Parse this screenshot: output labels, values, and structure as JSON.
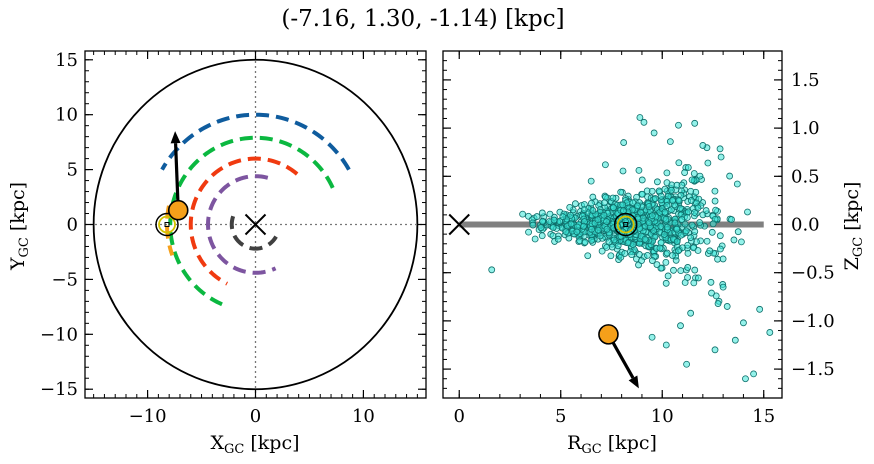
{
  "figure": {
    "title": "(-7.16, 1.30, -1.14) [kpc]"
  },
  "chart_data": [
    {
      "type": "line",
      "panel": "left",
      "xlabel_main": "X",
      "xlabel_sub": "GC",
      "xlabel_unit": " [kpc]",
      "ylabel_main": "Y",
      "ylabel_sub": "GC",
      "ylabel_unit": " [kpc]",
      "xlim": [
        -15.8,
        15.8
      ],
      "ylim": [
        -15.8,
        15.8
      ],
      "xticks": [
        -10,
        0,
        10
      ],
      "xtick_labels": [
        "−10",
        "0",
        "10"
      ],
      "yticks": [
        -15,
        -10,
        -5,
        0,
        5,
        10,
        15
      ],
      "ytick_labels": [
        "−15",
        "−10",
        "−5",
        "0",
        "5",
        "10",
        "15"
      ],
      "grid": false,
      "boundary_circle": {
        "center": [
          0,
          0
        ],
        "radius": 15,
        "color": "#000000"
      },
      "crosshair_lines": {
        "x": 0,
        "y": 0,
        "style": "dotted",
        "color": "#777777"
      },
      "galactic_center_marker": {
        "x": 0,
        "y": 0,
        "symbol": "x",
        "color": "#000000"
      },
      "sun_marker": {
        "x": -8.2,
        "y": 0.0,
        "symbol": "circled-dot",
        "color": "#d4c400"
      },
      "object_marker": {
        "x": -7.16,
        "y": 1.3,
        "color": "#f5a01a"
      },
      "velocity_arrow": {
        "from": [
          -7.16,
          1.3
        ],
        "to": [
          -7.45,
          8.5
        ],
        "color": "#000000"
      },
      "series": [
        {
          "color": "#0f5c9e",
          "radius": 10.0,
          "arc_deg": [
            30,
            150
          ]
        },
        {
          "color": "#0bb840",
          "radius": 7.9,
          "arc_deg": [
            25,
            250
          ]
        },
        {
          "color": "#f03a10",
          "radius": 6.0,
          "arc_deg": [
            50,
            245
          ]
        },
        {
          "color": "#7d55a0",
          "radius": 4.4,
          "arc_deg": [
            75,
            295
          ]
        },
        {
          "color": "#404040",
          "radius": 2.2,
          "arc_deg": [
            160,
            330
          ]
        },
        {
          "color": "#f5a01a",
          "radius": 8.2,
          "arc_deg": [
            168,
            200
          ]
        }
      ]
    },
    {
      "type": "scatter",
      "panel": "right",
      "xlabel_main": "R",
      "xlabel_sub": "GC",
      "xlabel_unit": " [kpc]",
      "ylabel_main": "Z",
      "ylabel_sub": "GC",
      "ylabel_unit": " [kpc]",
      "xlim": [
        -0.8,
        15.9
      ],
      "ylim": [
        -1.8,
        1.8
      ],
      "xticks": [
        0,
        5,
        10,
        15
      ],
      "xtick_labels": [
        "0",
        "5",
        "10",
        "15"
      ],
      "yticks": [
        -1.5,
        -1.0,
        -0.5,
        0.0,
        0.5,
        1.0,
        1.5
      ],
      "ytick_labels": [
        "−1.5",
        "−1.0",
        "−0.5",
        "0.0",
        "0.5",
        "1.0",
        "1.5"
      ],
      "ytick_side": "right",
      "grid": false,
      "disk_line": {
        "x": [
          0,
          15
        ],
        "y": 0.0,
        "color": "#808080"
      },
      "galactic_center_marker": {
        "x": 0.0,
        "y": 0.0,
        "symbol": "x",
        "color": "#000000"
      },
      "sun_marker": {
        "x": 8.2,
        "y": 0.0,
        "symbol": "circled-dot",
        "color": "#d4c400"
      },
      "object_marker": {
        "x": 7.35,
        "y": -1.14,
        "color": "#f5a01a"
      },
      "velocity_arrow": {
        "from": [
          7.35,
          -1.14
        ],
        "to": [
          8.85,
          -1.7
        ],
        "color": "#000000"
      },
      "scatter_color": "#3ce8d8",
      "scatter_edge": "#0e6e6a",
      "points": [
        [
          1.6,
          -0.47
        ],
        [
          8.9,
          1.11
        ],
        [
          9.1,
          1.06
        ],
        [
          10.8,
          1.03
        ],
        [
          11.6,
          1.05
        ],
        [
          8.1,
          0.85
        ],
        [
          10.4,
          0.86
        ],
        [
          13.7,
          0.42
        ],
        [
          14.2,
          0.13
        ],
        [
          13.9,
          -0.18
        ],
        [
          12.4,
          -0.6
        ],
        [
          13.2,
          -0.85
        ],
        [
          14.0,
          -1.02
        ],
        [
          14.8,
          -0.88
        ],
        [
          15.3,
          -1.12
        ],
        [
          9.5,
          -1.17
        ],
        [
          10.2,
          -1.25
        ],
        [
          12.6,
          -1.3
        ],
        [
          13.6,
          -1.2
        ],
        [
          11.2,
          -1.45
        ],
        [
          14.1,
          -1.6
        ],
        [
          14.5,
          -1.55
        ],
        [
          10.9,
          -1.05
        ],
        [
          11.4,
          -0.92
        ],
        [
          13.0,
          -0.65
        ],
        [
          6.5,
          0.45
        ],
        [
          7.2,
          0.62
        ],
        [
          12.9,
          0.7
        ],
        [
          12.0,
          0.82
        ],
        [
          9.6,
          0.95
        ]
      ],
      "scatter_cloud": {
        "note_free": true,
        "count": 900,
        "x_range": [
          3.0,
          13.8
        ],
        "core_x": 8.5,
        "z_spread_inner": 0.06,
        "z_spread_outer": 0.45
      }
    }
  ]
}
